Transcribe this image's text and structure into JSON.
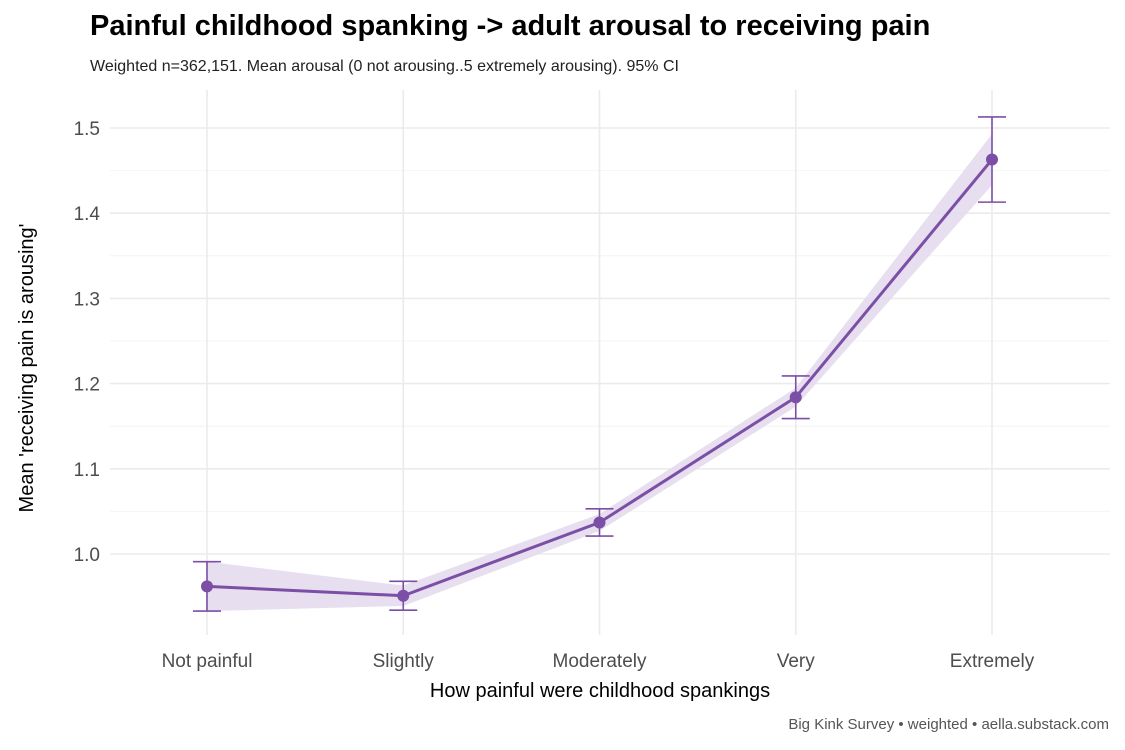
{
  "chart_data": {
    "type": "line",
    "title": "Painful childhood spanking -> adult arousal to receiving pain",
    "subtitle": "Weighted n=362,151. Mean arousal (0 not arousing..5 extremely arousing). 95% CI",
    "xlabel": "How painful were childhood spankings",
    "ylabel": "Mean 'receiving pain is arousing'",
    "caption": "Big Kink Survey  •  weighted  •  aella.substack.com",
    "categories": [
      "Not painful",
      "Slightly",
      "Moderately",
      "Very",
      "Extremely"
    ],
    "values": [
      0.962,
      0.951,
      1.037,
      1.184,
      1.463
    ],
    "ci_lower": [
      0.933,
      0.934,
      1.021,
      1.159,
      1.413
    ],
    "ci_upper": [
      0.991,
      0.968,
      1.053,
      1.209,
      1.513
    ],
    "band_lower": [
      0.933,
      0.939,
      1.027,
      1.173,
      1.433
    ],
    "band_upper": [
      0.991,
      0.963,
      1.047,
      1.195,
      1.493
    ],
    "yticks": [
      1.0,
      1.1,
      1.2,
      1.3,
      1.4,
      1.5
    ],
    "ylim": [
      0.905,
      1.545
    ],
    "grid": true,
    "colors": {
      "line": "#7b4fa6",
      "band": "#e4dbee",
      "grid": "#ebebeb"
    }
  }
}
